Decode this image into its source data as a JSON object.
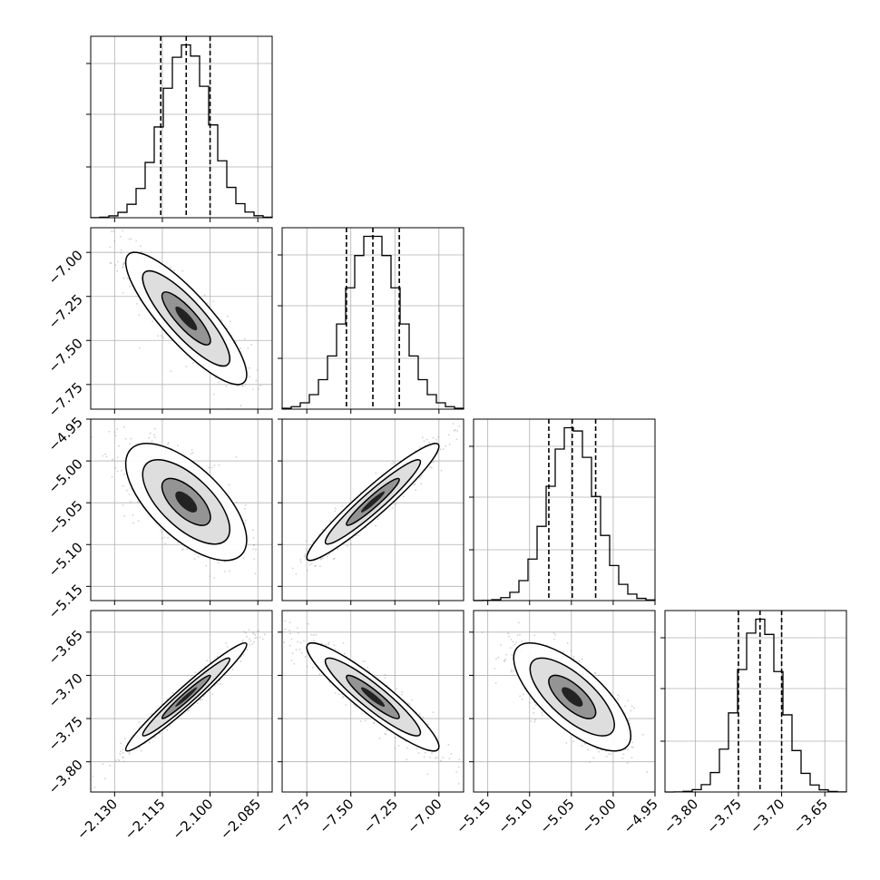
{
  "chart_data": {
    "type": "corner",
    "grid": true,
    "parameters": [
      {
        "range": [
          -2.1375,
          -2.0805
        ],
        "ticks": [
          -2.13,
          -2.115,
          -2.1,
          -2.085
        ],
        "tick_labels": [
          "−2.130",
          "−2.115",
          "−2.100",
          "−2.085"
        ],
        "quantiles": [
          -2.1155,
          -2.1075,
          -2.1
        ],
        "median": -2.1075,
        "sigma": 0.0076
      },
      {
        "range": [
          -7.89,
          -6.86
        ],
        "ticks": [
          -7.75,
          -7.5,
          -7.25,
          -7.0
        ],
        "tick_labels": [
          "−7.75",
          "−7.50",
          "−7.25",
          "−7.00"
        ],
        "quantiles": [
          -7.525,
          -7.375,
          -7.225
        ],
        "median": -7.375,
        "sigma": 0.15
      },
      {
        "range": [
          -5.167,
          -4.95
        ],
        "ticks": [
          -5.15,
          -5.1,
          -5.05,
          -5.0,
          -4.95
        ],
        "tick_labels": [
          "−5.15",
          "−5.10",
          "−5.05",
          "−5.00",
          "−4.95"
        ],
        "quantiles": [
          -5.077,
          -5.049,
          -5.021
        ],
        "median": -5.049,
        "sigma": 0.028
      },
      {
        "range": [
          -3.835,
          -3.625
        ],
        "ticks": [
          -3.8,
          -3.75,
          -3.7,
          -3.65
        ],
        "tick_labels": [
          "−3.80",
          "−3.75",
          "−3.70",
          "−3.65"
        ],
        "quantiles": [
          -3.75,
          -3.725,
          -3.7
        ],
        "median": -3.725,
        "sigma": 0.025
      }
    ],
    "correlations": [
      {
        "i": 1,
        "j": 0,
        "rho": -0.85
      },
      {
        "i": 2,
        "j": 0,
        "rho": -0.65
      },
      {
        "i": 2,
        "j": 1,
        "rho": 0.95
      },
      {
        "i": 3,
        "j": 0,
        "rho": 0.97
      },
      {
        "i": 3,
        "j": 1,
        "rho": -0.92
      },
      {
        "i": 3,
        "j": 2,
        "rho": -0.72
      }
    ]
  }
}
